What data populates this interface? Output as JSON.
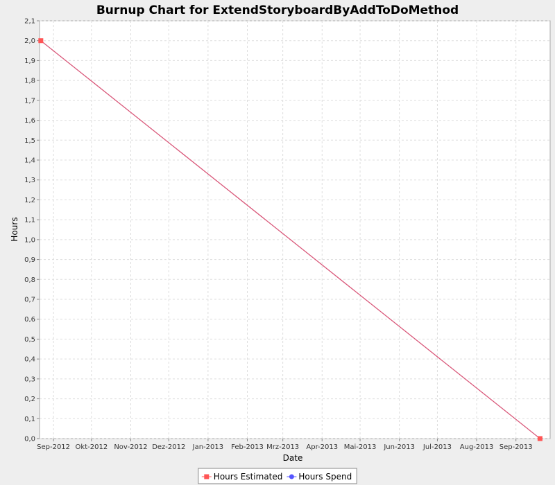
{
  "chart_data": {
    "type": "line",
    "title": "Burnup Chart for ExtendStoryboardByAddToDoMethod",
    "xlabel": "Date",
    "ylabel": "Hours",
    "x_axis": {
      "type": "date",
      "range": [
        "2012-08-21",
        "2013-09-28"
      ],
      "ticks": [
        {
          "date": "2012-09-01",
          "label": "Sep-2012"
        },
        {
          "date": "2012-10-01",
          "label": "Okt-2012"
        },
        {
          "date": "2012-11-01",
          "label": "Nov-2012"
        },
        {
          "date": "2012-12-01",
          "label": "Dez-2012"
        },
        {
          "date": "2013-01-01",
          "label": "Jan-2013"
        },
        {
          "date": "2013-02-01",
          "label": "Feb-2013"
        },
        {
          "date": "2013-03-01",
          "label": "Mrz-2013"
        },
        {
          "date": "2013-04-01",
          "label": "Apr-2013"
        },
        {
          "date": "2013-05-01",
          "label": "Mai-2013"
        },
        {
          "date": "2013-06-01",
          "label": "Jun-2013"
        },
        {
          "date": "2013-07-01",
          "label": "Jul-2013"
        },
        {
          "date": "2013-08-01",
          "label": "Aug-2013"
        },
        {
          "date": "2013-09-01",
          "label": "Sep-2013"
        }
      ]
    },
    "y_axis": {
      "range": [
        0.0,
        2.1
      ],
      "ticks": [
        "0,0",
        "0,1",
        "0,2",
        "0,3",
        "0,4",
        "0,5",
        "0,6",
        "0,7",
        "0,8",
        "0,9",
        "1,0",
        "1,1",
        "1,2",
        "1,3",
        "1,4",
        "1,5",
        "1,6",
        "1,7",
        "1,8",
        "1,9",
        "2,0",
        "2,1"
      ]
    },
    "grid": true,
    "legend_position": "bottom-center",
    "series": [
      {
        "name": "Hours Estimated",
        "color": "#ff5555",
        "marker": "square",
        "points": [
          {
            "x": "2012-08-22",
            "y": 2.0
          },
          {
            "x": "2013-09-20",
            "y": 0.0
          }
        ]
      },
      {
        "name": "Hours Spend",
        "color": "#5555ff",
        "marker": "circle",
        "points": []
      }
    ],
    "line_color": "#d9587a"
  }
}
